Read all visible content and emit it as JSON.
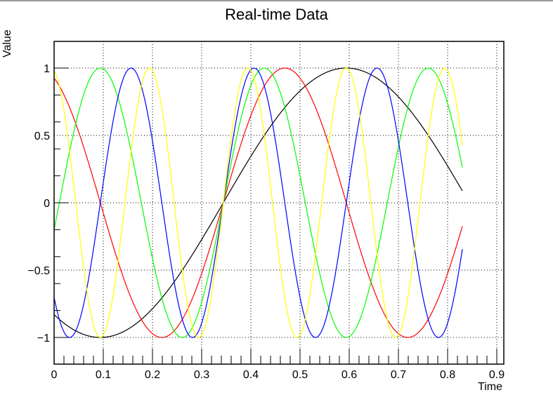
{
  "chart_data": {
    "type": "line",
    "title": "Real-time Data",
    "xlabel": "Time",
    "ylabel": "Value",
    "xlim": [
      0,
      0.9
    ],
    "ylim": [
      -1.2,
      1.2
    ],
    "xticks": [
      "0",
      "0.1",
      "0.2",
      "0.3",
      "0.4",
      "0.5",
      "0.6",
      "0.7",
      "0.8",
      "0.9"
    ],
    "yticks": [
      "-1",
      "-0.5",
      "0",
      "0.5",
      "1"
    ],
    "grid": true,
    "legend": null,
    "x_range_of_data": [
      0,
      0.83
    ],
    "series": [
      {
        "name": "black",
        "color": "#000000",
        "formula": "sin(2*pi*1*(t-0.344))",
        "frequency": 1
      },
      {
        "name": "red",
        "color": "#ff0000",
        "formula": "sin(2*pi*2*(t-0.344))",
        "frequency": 2
      },
      {
        "name": "green",
        "color": "#00ff00",
        "formula": "sin(2*pi*3*(t-0.344))",
        "frequency": 3
      },
      {
        "name": "blue",
        "color": "#0000ff",
        "formula": "sin(2*pi*4*(t-0.344))",
        "frequency": 4
      },
      {
        "name": "yellow",
        "color": "#ffff00",
        "formula": "sin(2*pi*5*(t-0.344))",
        "frequency": 5
      }
    ]
  }
}
